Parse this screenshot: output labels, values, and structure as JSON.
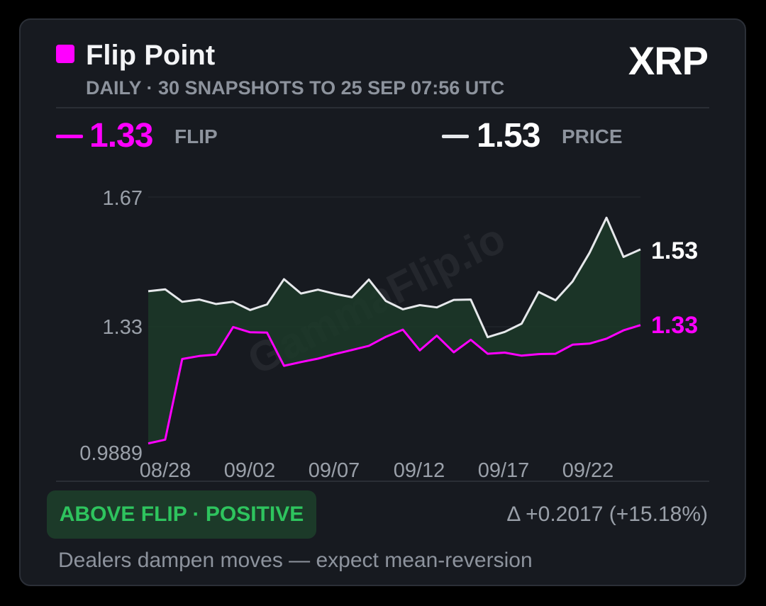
{
  "header": {
    "title": "Flip Point",
    "subtitle": "DAILY · 30 SNAPSHOTS TO 25 SEP 07:56 UTC",
    "symbol": "XRP"
  },
  "summary": {
    "flip_value": "1.33",
    "flip_label": "FLIP",
    "price_value": "1.53",
    "price_label": "PRICE"
  },
  "chart_data": {
    "type": "line",
    "watermark": "GammaFlip.io",
    "ylim": [
      0.9889,
      1.67
    ],
    "yticks": [
      "1.67",
      "1.33",
      "0.9889"
    ],
    "xticks": [
      "08/28",
      "09/02",
      "09/07",
      "09/12",
      "09/17",
      "09/22"
    ],
    "series": [
      {
        "key": "price",
        "values": [
          1.42,
          1.425,
          1.392,
          1.398,
          1.386,
          1.392,
          1.37,
          1.385,
          1.452,
          1.414,
          1.424,
          1.413,
          1.404,
          1.451,
          1.394,
          1.372,
          1.383,
          1.377,
          1.397,
          1.398,
          1.298,
          1.312,
          1.334,
          1.418,
          1.396,
          1.446,
          1.522,
          1.615,
          1.511,
          1.531
        ],
        "end_label": "1.53"
      },
      {
        "key": "flip",
        "values": [
          1.016,
          1.026,
          1.24,
          1.248,
          1.252,
          1.325,
          1.311,
          1.31,
          1.222,
          1.232,
          1.241,
          1.253,
          1.264,
          1.275,
          1.299,
          1.318,
          1.263,
          1.302,
          1.258,
          1.291,
          1.254,
          1.257,
          1.249,
          1.253,
          1.254,
          1.278,
          1.281,
          1.294,
          1.316,
          1.33
        ],
        "end_label": "1.33"
      }
    ],
    "fill_between": true
  },
  "footer": {
    "badge": "ABOVE FLIP · POSITIVE",
    "delta": "Δ +0.2017 (+15.18%)",
    "note": "Dealers dampen moves — expect mean-reversion"
  },
  "colors": {
    "flip": "#ff00ff",
    "price": "#e6e8eb",
    "fill": "#1c3a29",
    "badge_text": "#2ec45e"
  }
}
